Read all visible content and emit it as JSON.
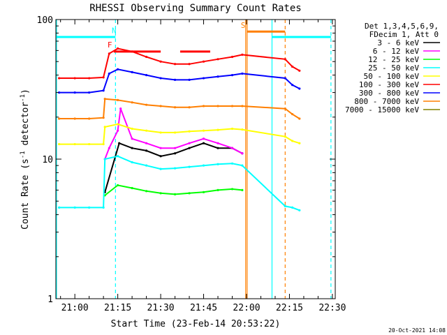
{
  "chart_data": {
    "type": "line",
    "title": "RHESSI Observing Summary Count Rates",
    "xlabel": "Start Time (23-Feb-14 20:53:22)",
    "ylabel": "Count Rate (s",
    "ylabel_sup": "-1",
    "ylabel_tail": " detector",
    "ylabel_sup2": "-1",
    "ylabel_end": ")",
    "x_unit": "minutes of day (20:53:22 = 1253.37)",
    "xlim": [
      1253.37,
      1351
    ],
    "y_scale": "log",
    "ylim": [
      1,
      100
    ],
    "x_ticks": [
      {
        "v": 1260,
        "label": "21:00"
      },
      {
        "v": 1275,
        "label": "21:15"
      },
      {
        "v": 1290,
        "label": "21:30"
      },
      {
        "v": 1305,
        "label": "21:45"
      },
      {
        "v": 1320,
        "label": "22:00"
      },
      {
        "v": 1335,
        "label": "22:15"
      },
      {
        "v": 1350,
        "label": "22:30"
      }
    ],
    "y_ticks": [
      {
        "v": 1,
        "label": "1"
      },
      {
        "v": 10,
        "label": "10"
      },
      {
        "v": 100,
        "label": "100"
      }
    ],
    "legend": {
      "position": "right",
      "header": [
        "Det 1,3,4,5,6,9,",
        "FDecim 1, Att 0"
      ]
    },
    "series": [
      {
        "name": "3 - 6 keV",
        "color": "#000000",
        "values": [
          [
            1270.5,
            5.8
          ],
          [
            1275.5,
            13
          ],
          [
            1280,
            12
          ],
          [
            1285,
            11.5
          ],
          [
            1290,
            10.5
          ],
          [
            1295,
            11
          ],
          [
            1300,
            12
          ],
          [
            1305,
            13
          ],
          [
            1310,
            12
          ],
          [
            1315,
            12
          ],
          [
            1318.5,
            11
          ]
        ]
      },
      {
        "name": "6 - 12 keV",
        "color": "#ff00ff",
        "values": [
          [
            1270.5,
            10
          ],
          [
            1272,
            12
          ],
          [
            1275,
            16
          ],
          [
            1276,
            23
          ],
          [
            1280,
            14
          ],
          [
            1285,
            13
          ],
          [
            1290,
            12
          ],
          [
            1295,
            12
          ],
          [
            1300,
            13
          ],
          [
            1305,
            14
          ],
          [
            1310,
            13
          ],
          [
            1315,
            12
          ],
          [
            1318.5,
            11
          ]
        ]
      },
      {
        "name": "12 - 25 keV",
        "color": "#00ff00",
        "values": [
          [
            1270.5,
            5.5
          ],
          [
            1275,
            6.5
          ],
          [
            1280,
            6.2
          ],
          [
            1285,
            5.9
          ],
          [
            1290,
            5.7
          ],
          [
            1295,
            5.6
          ],
          [
            1300,
            5.7
          ],
          [
            1305,
            5.8
          ],
          [
            1310,
            6
          ],
          [
            1315,
            6.1
          ],
          [
            1318.5,
            6
          ]
        ]
      },
      {
        "name": "25 - 50 keV",
        "color": "#00ffff",
        "values": [
          [
            1254.5,
            4.5
          ],
          [
            1260,
            4.5
          ],
          [
            1265,
            4.5
          ],
          [
            1270,
            4.5
          ],
          [
            1270.5,
            10
          ],
          [
            1275,
            10.5
          ],
          [
            1280,
            9.5
          ],
          [
            1285,
            9
          ],
          [
            1290,
            8.5
          ],
          [
            1295,
            8.6
          ],
          [
            1300,
            8.8
          ],
          [
            1305,
            9
          ],
          [
            1310,
            9.2
          ],
          [
            1315,
            9.3
          ],
          [
            1318.5,
            9
          ],
          [
            1333.5,
            4.6
          ],
          [
            1336,
            4.5
          ],
          [
            1338.5,
            4.3
          ]
        ]
      },
      {
        "name": "50 - 100 keV",
        "color": "#ffff00",
        "values": [
          [
            1254.5,
            12.8
          ],
          [
            1260,
            12.8
          ],
          [
            1265,
            12.8
          ],
          [
            1270,
            12.8
          ],
          [
            1270.5,
            17
          ],
          [
            1275,
            17.8
          ],
          [
            1280,
            16.5
          ],
          [
            1285,
            16
          ],
          [
            1290,
            15.5
          ],
          [
            1295,
            15.5
          ],
          [
            1300,
            15.8
          ],
          [
            1305,
            16
          ],
          [
            1310,
            16.2
          ],
          [
            1315,
            16.5
          ],
          [
            1318.5,
            16.3
          ],
          [
            1333.5,
            14.5
          ],
          [
            1336,
            13.5
          ],
          [
            1338.5,
            13
          ]
        ]
      },
      {
        "name": "100 - 300 keV",
        "color": "#ff0000",
        "values": [
          [
            1254.5,
            38
          ],
          [
            1260,
            38
          ],
          [
            1265,
            38
          ],
          [
            1270,
            38.5
          ],
          [
            1272,
            57
          ],
          [
            1275,
            62
          ],
          [
            1280,
            59
          ],
          [
            1285,
            54
          ],
          [
            1290,
            50
          ],
          [
            1295,
            48
          ],
          [
            1300,
            48
          ],
          [
            1305,
            50
          ],
          [
            1310,
            52
          ],
          [
            1315,
            54
          ],
          [
            1318.5,
            56
          ],
          [
            1333.5,
            52
          ],
          [
            1336,
            46
          ],
          [
            1338.5,
            43
          ]
        ]
      },
      {
        "name": "300 - 800 keV",
        "color": "#0000ff",
        "values": [
          [
            1254.5,
            30
          ],
          [
            1260,
            30
          ],
          [
            1265,
            30
          ],
          [
            1270,
            31
          ],
          [
            1272,
            41
          ],
          [
            1275,
            44
          ],
          [
            1280,
            42
          ],
          [
            1285,
            40
          ],
          [
            1290,
            38
          ],
          [
            1295,
            37
          ],
          [
            1300,
            37
          ],
          [
            1305,
            38
          ],
          [
            1310,
            39
          ],
          [
            1315,
            40
          ],
          [
            1318.5,
            41
          ],
          [
            1333.5,
            38
          ],
          [
            1336,
            34
          ],
          [
            1338.5,
            32
          ]
        ]
      },
      {
        "name": "800 - 7000 keV",
        "color": "#ff7f00",
        "values": [
          [
            1254.5,
            19.5
          ],
          [
            1260,
            19.5
          ],
          [
            1265,
            19.5
          ],
          [
            1270,
            19.8
          ],
          [
            1270.5,
            27
          ],
          [
            1275,
            26.5
          ],
          [
            1280,
            25.5
          ],
          [
            1285,
            24.5
          ],
          [
            1290,
            24
          ],
          [
            1295,
            23.5
          ],
          [
            1300,
            23.5
          ],
          [
            1305,
            24
          ],
          [
            1310,
            24
          ],
          [
            1315,
            24
          ],
          [
            1318.5,
            24
          ],
          [
            1333.5,
            23
          ],
          [
            1336,
            21
          ],
          [
            1338.5,
            19.5
          ]
        ]
      },
      {
        "name": "7000 - 15000 keV",
        "color": "#808000",
        "values": []
      }
    ],
    "annotations": [
      {
        "label": "N",
        "x": 1273.7,
        "color": "#00ffff",
        "y": 80
      },
      {
        "label": "F",
        "x": 1272.2,
        "color": "#ff0000",
        "y": 63
      },
      {
        "label": "S",
        "x": 1318.8,
        "color": "#ff7f00",
        "y": 87
      }
    ],
    "flag_bars": [
      {
        "kind": "night",
        "color": "#00ffff",
        "y": 75,
        "spans": [
          [
            1253.37,
            1274.2
          ],
          [
            1328.9,
            1349.5
          ]
        ]
      },
      {
        "kind": "flare",
        "color": "#ff0000",
        "y": 59,
        "spans": [
          [
            1273.6,
            1290
          ],
          [
            1296.8,
            1307.3
          ]
        ]
      },
      {
        "kind": "saa",
        "color": "#ff7f00",
        "y": 82,
        "spans": [
          [
            1320.2,
            1333.5
          ]
        ]
      }
    ],
    "vlines": [
      {
        "x": 1274.2,
        "color": "#00ffff",
        "dash": true
      },
      {
        "x": 1349.5,
        "color": "#00ffff",
        "dash": true
      },
      {
        "x": 1333.5,
        "color": "#ff7f00",
        "dash": true
      },
      {
        "x": 1319.7,
        "color": "#ff7f00",
        "dash": false
      },
      {
        "x": 1320.2,
        "color": "#ff7f00",
        "dash": false
      },
      {
        "x": 1328.9,
        "color": "#00ffff",
        "dash": false
      },
      {
        "x": 1253.6,
        "color": "#00ffff",
        "dash": false
      }
    ]
  },
  "timestamp": "20-Oct-2021 14:08"
}
